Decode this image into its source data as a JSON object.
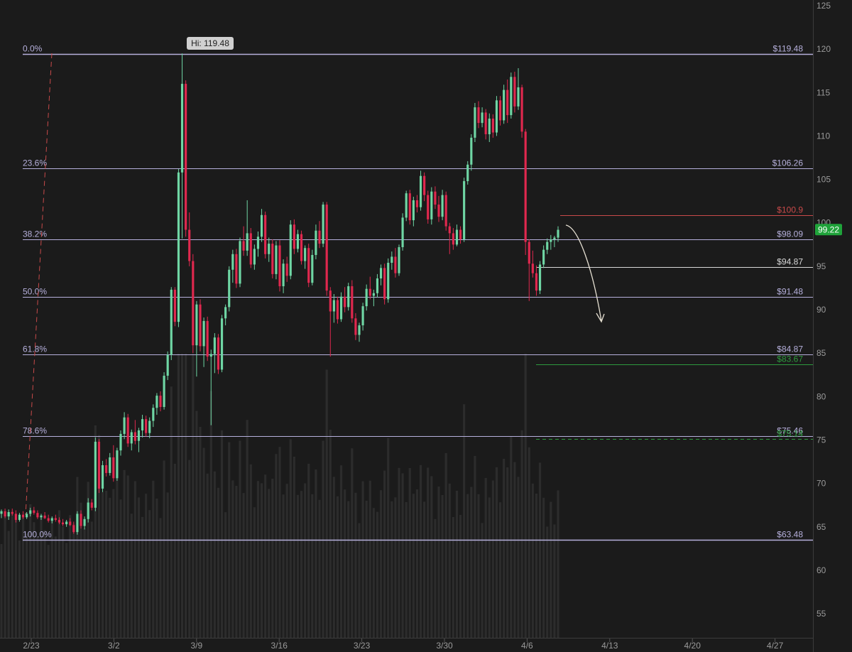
{
  "chart_data": {
    "type": "candlestick",
    "y_axis": {
      "min": 52,
      "max": 126,
      "ticks": [
        125,
        120,
        115,
        110,
        105,
        100,
        95,
        90,
        85,
        80,
        75,
        70,
        65,
        60,
        55
      ]
    },
    "x_axis": {
      "labels": [
        "2/23",
        "3/2",
        "3/9",
        "3/16",
        "3/23",
        "3/30",
        "4/6",
        "4/13",
        "4/20",
        "4/27"
      ]
    },
    "high_label": "Hi: 119.48",
    "last_price": 99.22,
    "last_price_label": "99.22",
    "fib_levels": [
      {
        "ratio": "0.0%",
        "price": 119.48,
        "price_label": "$119.48"
      },
      {
        "ratio": "23.6%",
        "price": 106.26,
        "price_label": "$106.26"
      },
      {
        "ratio": "38.2%",
        "price": 98.09,
        "price_label": "$98.09"
      },
      {
        "ratio": "50.0%",
        "price": 91.48,
        "price_label": "$91.48"
      },
      {
        "ratio": "61.8%",
        "price": 84.87,
        "price_label": "$84.87"
      },
      {
        "ratio": "78.6%",
        "price": 75.46,
        "price_label": "$75.46"
      },
      {
        "ratio": "100.0%",
        "price": 63.48,
        "price_label": "$63.48"
      }
    ],
    "horizontal_lines": [
      {
        "price": 100.9,
        "label": "$100.9",
        "color": "#c94a4a",
        "style": "solid"
      },
      {
        "price": 94.87,
        "label": "$94.87",
        "color": "#d8d8d8",
        "style": "solid"
      },
      {
        "price": 83.67,
        "label": "$83.67",
        "color": "#2e9a3e",
        "style": "solid"
      },
      {
        "price": 75.14,
        "label": "$75.14",
        "color": "#2e9a3e",
        "style": "dashed"
      }
    ],
    "colors": {
      "up": "#6fd6a4",
      "down": "#e0284e",
      "fib": "#b6b0dc",
      "volume": "#3a3a3a",
      "last_price_bg": "#1fa33a"
    },
    "candles_ohlc": [
      [
        66.5,
        67.0,
        66.0,
        66.8
      ],
      [
        66.8,
        67.1,
        66.0,
        66.2
      ],
      [
        66.2,
        67.0,
        65.8,
        66.7
      ],
      [
        66.7,
        67.1,
        66.3,
        66.5
      ],
      [
        66.5,
        66.9,
        65.5,
        65.8
      ],
      [
        65.8,
        66.6,
        65.6,
        66.4
      ],
      [
        66.4,
        66.8,
        65.9,
        66.1
      ],
      [
        66.1,
        66.7,
        65.9,
        66.5
      ],
      [
        66.5,
        67.2,
        66.2,
        66.9
      ],
      [
        66.9,
        67.3,
        66.4,
        66.6
      ],
      [
        66.6,
        66.9,
        65.9,
        66.1
      ],
      [
        66.1,
        66.5,
        65.8,
        66.3
      ],
      [
        66.3,
        66.7,
        65.9,
        66.0
      ],
      [
        66.0,
        66.4,
        65.5,
        65.7
      ],
      [
        65.7,
        66.2,
        65.4,
        66.0
      ],
      [
        66.0,
        66.4,
        65.6,
        65.8
      ],
      [
        65.8,
        66.1,
        65.3,
        65.5
      ],
      [
        65.5,
        65.9,
        65.1,
        65.3
      ],
      [
        65.3,
        65.8,
        65.0,
        65.6
      ],
      [
        65.6,
        66.0,
        65.1,
        65.2
      ],
      [
        65.2,
        65.6,
        64.2,
        64.4
      ],
      [
        64.4,
        66.8,
        64.1,
        66.5
      ],
      [
        66.5,
        66.9,
        64.8,
        65.1
      ],
      [
        65.1,
        66.2,
        64.7,
        65.9
      ],
      [
        65.9,
        68.3,
        65.5,
        67.8
      ],
      [
        67.8,
        68.2,
        66.9,
        67.2
      ],
      [
        67.2,
        75.3,
        66.8,
        74.8
      ],
      [
        74.8,
        75.1,
        68.9,
        69.4
      ],
      [
        69.4,
        72.6,
        69.0,
        72.1
      ],
      [
        72.1,
        72.8,
        70.8,
        71.2
      ],
      [
        71.2,
        73.5,
        70.9,
        73.0
      ],
      [
        73.0,
        74.4,
        70.2,
        70.6
      ],
      [
        70.6,
        74.1,
        70.3,
        73.8
      ],
      [
        73.8,
        76.1,
        73.2,
        75.7
      ],
      [
        75.7,
        78.2,
        75.1,
        77.6
      ],
      [
        77.6,
        78.0,
        74.2,
        74.6
      ],
      [
        74.6,
        76.2,
        73.8,
        75.9
      ],
      [
        75.9,
        77.3,
        74.5,
        74.9
      ],
      [
        74.9,
        76.4,
        73.6,
        76.1
      ],
      [
        76.1,
        77.9,
        75.3,
        77.4
      ],
      [
        77.4,
        77.8,
        75.4,
        75.8
      ],
      [
        75.8,
        77.6,
        75.2,
        77.2
      ],
      [
        77.2,
        79.1,
        76.5,
        78.7
      ],
      [
        78.7,
        80.4,
        77.9,
        80.1
      ],
      [
        80.1,
        80.6,
        78.3,
        78.8
      ],
      [
        78.8,
        82.8,
        78.5,
        82.4
      ],
      [
        82.4,
        85.2,
        81.9,
        84.8
      ],
      [
        84.8,
        92.6,
        84.2,
        92.3
      ],
      [
        92.3,
        92.6,
        88.1,
        88.6
      ],
      [
        88.6,
        106.2,
        88.0,
        105.8
      ],
      [
        105.8,
        119.5,
        98.2,
        116.0
      ],
      [
        116.0,
        116.4,
        98.4,
        99.2
      ],
      [
        99.2,
        101.2,
        95.0,
        95.6
      ],
      [
        95.6,
        96.4,
        85.0,
        85.9
      ],
      [
        85.9,
        91.0,
        82.3,
        90.6
      ],
      [
        90.6,
        91.2,
        85.2,
        85.8
      ],
      [
        85.8,
        89.1,
        83.4,
        88.7
      ],
      [
        88.7,
        89.2,
        84.1,
        84.6
      ],
      [
        84.6,
        85.4,
        76.7,
        84.9
      ],
      [
        84.9,
        87.3,
        82.7,
        86.8
      ],
      [
        86.8,
        87.2,
        82.6,
        83.1
      ],
      [
        83.1,
        89.4,
        82.8,
        89.0
      ],
      [
        89.0,
        90.6,
        88.2,
        90.3
      ],
      [
        90.3,
        95.0,
        89.8,
        94.6
      ],
      [
        94.6,
        96.9,
        93.1,
        96.4
      ],
      [
        96.4,
        97.0,
        92.5,
        93.0
      ],
      [
        93.0,
        98.3,
        92.6,
        97.9
      ],
      [
        97.9,
        99.6,
        96.2,
        96.8
      ],
      [
        96.8,
        102.6,
        96.2,
        98.8
      ],
      [
        98.8,
        99.4,
        94.8,
        95.2
      ],
      [
        95.2,
        97.5,
        94.6,
        97.0
      ],
      [
        97.0,
        99.0,
        96.1,
        98.4
      ],
      [
        98.4,
        101.6,
        97.8,
        100.9
      ],
      [
        100.9,
        101.3,
        95.9,
        96.4
      ],
      [
        96.4,
        98.3,
        95.5,
        97.6
      ],
      [
        97.6,
        98.1,
        93.6,
        94.1
      ],
      [
        94.1,
        97.9,
        93.5,
        97.4
      ],
      [
        97.4,
        98.0,
        92.1,
        92.7
      ],
      [
        92.7,
        95.8,
        91.9,
        95.3
      ],
      [
        95.3,
        96.1,
        93.2,
        93.9
      ],
      [
        93.9,
        100.3,
        93.5,
        99.8
      ],
      [
        99.8,
        100.4,
        96.4,
        97.0
      ],
      [
        97.0,
        99.2,
        96.6,
        98.7
      ],
      [
        98.7,
        99.1,
        95.2,
        95.6
      ],
      [
        95.6,
        97.4,
        94.7,
        97.1
      ],
      [
        97.1,
        97.6,
        92.6,
        93.1
      ],
      [
        93.1,
        96.9,
        92.8,
        96.3
      ],
      [
        96.3,
        99.8,
        95.8,
        99.1
      ],
      [
        99.1,
        100.2,
        97.1,
        97.6
      ],
      [
        97.6,
        102.4,
        97.2,
        102.1
      ],
      [
        102.1,
        102.4,
        91.6,
        92.2
      ],
      [
        92.2,
        92.6,
        84.6,
        89.8
      ],
      [
        89.8,
        91.8,
        88.5,
        91.1
      ],
      [
        91.1,
        91.5,
        88.4,
        88.9
      ],
      [
        88.9,
        92.0,
        88.6,
        91.5
      ],
      [
        91.5,
        92.6,
        89.7,
        90.3
      ],
      [
        90.3,
        93.1,
        89.9,
        92.7
      ],
      [
        92.7,
        93.4,
        88.5,
        89.0
      ],
      [
        89.0,
        89.6,
        86.5,
        87.1
      ],
      [
        87.1,
        88.5,
        86.3,
        88.2
      ],
      [
        88.2,
        90.8,
        87.6,
        90.4
      ],
      [
        90.4,
        92.9,
        89.9,
        92.4
      ],
      [
        92.4,
        93.8,
        91.2,
        91.6
      ],
      [
        91.6,
        92.3,
        90.4,
        91.9
      ],
      [
        91.9,
        94.1,
        91.4,
        93.6
      ],
      [
        93.6,
        95.2,
        92.8,
        94.8
      ],
      [
        94.8,
        95.3,
        90.6,
        91.2
      ],
      [
        91.2,
        95.9,
        90.8,
        95.4
      ],
      [
        95.4,
        96.7,
        94.6,
        96.1
      ],
      [
        96.1,
        97.1,
        93.7,
        94.2
      ],
      [
        94.2,
        97.5,
        93.9,
        97.2
      ],
      [
        97.2,
        101.1,
        96.8,
        100.6
      ],
      [
        100.6,
        103.7,
        100.2,
        103.4
      ],
      [
        103.4,
        103.8,
        99.8,
        100.3
      ],
      [
        100.3,
        103.0,
        99.6,
        102.6
      ],
      [
        102.6,
        103.2,
        101.2,
        101.8
      ],
      [
        101.8,
        106.0,
        101.4,
        105.4
      ],
      [
        105.4,
        105.8,
        102.5,
        103.2
      ],
      [
        103.2,
        103.7,
        99.9,
        100.4
      ],
      [
        100.4,
        104.1,
        99.8,
        103.6
      ],
      [
        103.6,
        104.2,
        101.6,
        102.1
      ],
      [
        102.1,
        103.1,
        100.1,
        100.7
      ],
      [
        100.7,
        103.8,
        100.3,
        103.2
      ],
      [
        103.2,
        103.6,
        99.1,
        99.6
      ],
      [
        99.6,
        100.0,
        96.4,
        98.8
      ],
      [
        98.8,
        99.4,
        96.9,
        97.5
      ],
      [
        97.5,
        99.8,
        97.3,
        99.2
      ],
      [
        99.2,
        99.6,
        97.6,
        98.1
      ],
      [
        98.1,
        105.2,
        97.8,
        104.8
      ],
      [
        104.8,
        107.1,
        104.4,
        106.7
      ],
      [
        106.7,
        110.2,
        106.0,
        109.8
      ],
      [
        109.8,
        113.8,
        109.3,
        113.3
      ],
      [
        113.3,
        114.0,
        110.9,
        111.5
      ],
      [
        111.5,
        113.3,
        111.0,
        112.7
      ],
      [
        112.7,
        113.1,
        109.6,
        110.2
      ],
      [
        110.2,
        112.6,
        109.3,
        112.0
      ],
      [
        112.0,
        112.5,
        109.8,
        110.4
      ],
      [
        110.4,
        114.6,
        110.0,
        114.1
      ],
      [
        114.1,
        114.6,
        111.2,
        111.8
      ],
      [
        111.8,
        115.9,
        111.4,
        115.3
      ],
      [
        115.3,
        116.5,
        111.5,
        112.4
      ],
      [
        112.4,
        117.3,
        112.0,
        116.8
      ],
      [
        116.8,
        117.4,
        112.7,
        113.4
      ],
      [
        113.4,
        117.8,
        113.0,
        115.6
      ],
      [
        115.6,
        115.9,
        109.8,
        110.5
      ],
      [
        110.5,
        110.8,
        96.3,
        97.8
      ],
      [
        97.8,
        98.1,
        91.0,
        95.3
      ],
      [
        95.3,
        96.8,
        93.7,
        94.2
      ],
      [
        94.2,
        95.1,
        91.6,
        92.2
      ],
      [
        92.2,
        95.6,
        91.8,
        95.2
      ],
      [
        95.2,
        97.4,
        94.8,
        96.9
      ],
      [
        96.9,
        98.2,
        96.4,
        97.8
      ],
      [
        97.8,
        98.6,
        96.9,
        98.1
      ],
      [
        98.1,
        98.5,
        97.2,
        98.3
      ],
      [
        98.3,
        99.6,
        97.8,
        99.2
      ]
    ]
  }
}
